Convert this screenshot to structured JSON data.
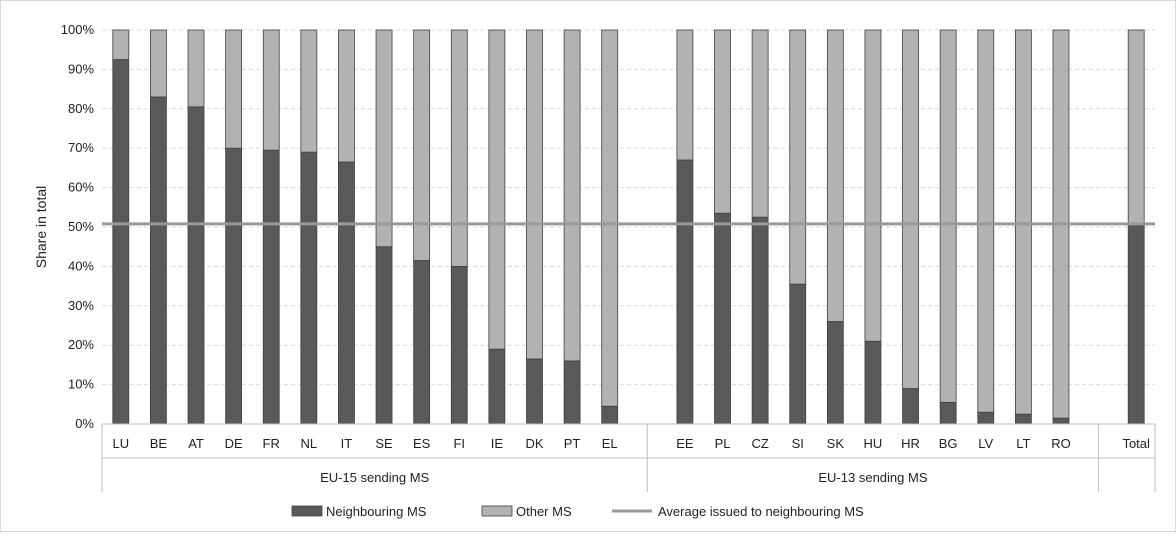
{
  "chart_data": {
    "type": "bar",
    "stacked": true,
    "ylabel": "Share in total",
    "ylim": [
      0,
      100
    ],
    "yticks": [
      "0%",
      "10%",
      "20%",
      "30%",
      "40%",
      "50%",
      "60%",
      "70%",
      "80%",
      "90%",
      "100%"
    ],
    "grid": true,
    "legend_position": "bottom",
    "groups": [
      {
        "label": "EU-15 sending MS",
        "categories": [
          "LU",
          "BE",
          "AT",
          "DE",
          "FR",
          "NL",
          "IT",
          "SE",
          "ES",
          "FI",
          "IE",
          "DK",
          "PT",
          "EL"
        ]
      },
      {
        "label": "EU-13 sending MS",
        "categories": [
          "EE",
          "PL",
          "CZ",
          "SI",
          "SK",
          "HU",
          "HR",
          "BG",
          "LV",
          "LT",
          "RO"
        ]
      },
      {
        "label": "",
        "categories": [
          "Total"
        ]
      }
    ],
    "categories": [
      "LU",
      "BE",
      "AT",
      "DE",
      "FR",
      "NL",
      "IT",
      "SE",
      "ES",
      "FI",
      "IE",
      "DK",
      "PT",
      "EL",
      "EE",
      "PL",
      "CZ",
      "SI",
      "SK",
      "HU",
      "HR",
      "BG",
      "LV",
      "LT",
      "RO",
      "Total"
    ],
    "series": [
      {
        "name": "Neighbouring MS",
        "color": "#595959",
        "values": [
          92.5,
          83,
          80.5,
          70,
          69.5,
          69,
          66.5,
          45,
          41.5,
          40,
          19,
          16.5,
          16,
          4.5,
          67,
          53.5,
          52.5,
          35.5,
          26,
          21,
          9,
          5.5,
          3,
          2.5,
          1.5,
          51
        ]
      },
      {
        "name": "Other MS",
        "color": "#b2b2b2",
        "values": [
          7.5,
          17,
          19.5,
          30,
          30.5,
          31,
          33.5,
          55,
          58.5,
          60,
          81,
          83.5,
          84,
          95.5,
          33,
          46.5,
          47.5,
          64.5,
          74,
          79,
          91,
          94.5,
          97,
          97.5,
          98.5,
          49
        ]
      }
    ],
    "average_line": {
      "name": "Average issued to neighbouring MS",
      "value": 50.8,
      "color": "#999999"
    }
  }
}
